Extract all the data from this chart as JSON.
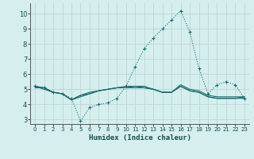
{
  "xlabel": "Humidex (Indice chaleur)",
  "background_color": "#d4efee",
  "grid_color": "#c0d4d4",
  "line_color": "#1a6b6b",
  "xlim": [
    -0.5,
    23.5
  ],
  "ylim": [
    2.7,
    10.7
  ],
  "yticks": [
    3,
    4,
    5,
    6,
    7,
    8,
    9,
    10
  ],
  "xticks": [
    0,
    1,
    2,
    3,
    4,
    5,
    6,
    7,
    8,
    9,
    10,
    11,
    12,
    13,
    14,
    15,
    16,
    17,
    18,
    19,
    20,
    21,
    22,
    23
  ],
  "main_series": [
    5.2,
    5.1,
    4.8,
    4.7,
    4.4,
    2.9,
    3.8,
    4.0,
    4.1,
    4.4,
    5.2,
    6.5,
    7.7,
    8.4,
    9.0,
    9.6,
    10.2,
    8.8,
    6.4,
    4.7,
    5.3,
    5.5,
    5.3,
    4.4
  ],
  "other_series": [
    [
      5.1,
      5.1,
      4.8,
      4.7,
      4.3,
      4.6,
      4.7,
      4.9,
      5.0,
      5.1,
      5.1,
      5.1,
      5.1,
      5.0,
      4.8,
      4.8,
      5.2,
      4.9,
      4.8,
      4.5,
      4.4,
      4.4,
      4.4,
      4.5
    ],
    [
      5.2,
      5.1,
      4.8,
      4.7,
      4.3,
      4.6,
      4.8,
      4.9,
      5.0,
      5.1,
      5.2,
      5.2,
      5.2,
      5.0,
      4.8,
      4.8,
      5.3,
      5.0,
      4.9,
      4.6,
      4.5,
      4.5,
      4.5,
      4.5
    ],
    [
      5.2,
      5.0,
      4.8,
      4.7,
      4.3,
      4.5,
      4.7,
      4.9,
      5.0,
      5.1,
      5.1,
      5.2,
      5.1,
      5.0,
      4.8,
      4.8,
      5.2,
      4.9,
      4.8,
      4.5,
      4.4,
      4.4,
      4.4,
      4.4
    ]
  ]
}
